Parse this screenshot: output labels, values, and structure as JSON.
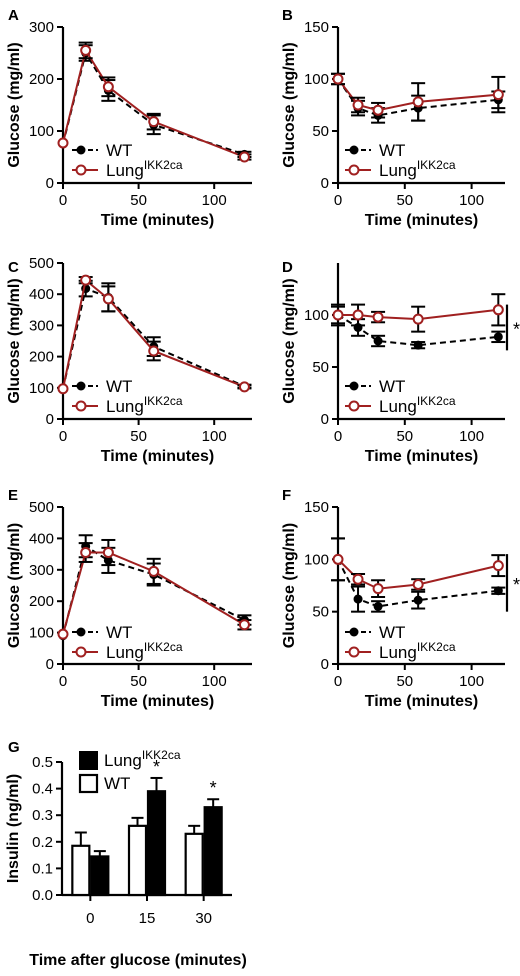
{
  "colors": {
    "wt": "#000000",
    "lung": "#a02020"
  },
  "legend": {
    "wt_label": "WT",
    "lung_label": "Lung",
    "lung_sup": "IKK2ca"
  },
  "chart_data": [
    {
      "panel": "A",
      "type": "line",
      "xlabel": "Time (minutes)",
      "ylabel": "Glucose (mg/ml)",
      "xlim": [
        0,
        125
      ],
      "ylim": [
        0,
        300
      ],
      "xticks": [
        0,
        50,
        100
      ],
      "yticks": [
        0,
        100,
        200,
        300
      ],
      "x": [
        0,
        15,
        30,
        60,
        120
      ],
      "series": [
        {
          "name": "WT",
          "values": [
            75,
            250,
            178,
            112,
            55
          ],
          "errors": [
            0,
            15,
            20,
            18,
            5
          ]
        },
        {
          "name": "LungIKK2ca",
          "values": [
            77,
            255,
            185,
            118,
            50
          ],
          "errors": [
            0,
            15,
            18,
            15,
            5
          ]
        }
      ],
      "legend_position": "lower-left",
      "significance": ""
    },
    {
      "panel": "B",
      "type": "line",
      "xlabel": "Time (minutes)",
      "ylabel": "Glucose (mg/ml)",
      "xlim": [
        0,
        125
      ],
      "ylim": [
        0,
        150
      ],
      "xticks": [
        0,
        50,
        100
      ],
      "yticks": [
        0,
        50,
        100,
        150
      ],
      "x": [
        0,
        15,
        30,
        60,
        120
      ],
      "series": [
        {
          "name": "WT",
          "values": [
            100,
            72,
            65,
            72,
            80
          ],
          "errors": [
            5,
            7,
            7,
            12,
            8
          ]
        },
        {
          "name": "LungIKK2ca",
          "values": [
            100,
            75,
            70,
            78,
            85
          ],
          "errors": [
            5,
            7,
            7,
            18,
            17
          ]
        }
      ],
      "legend_position": "lower-left",
      "significance": ""
    },
    {
      "panel": "C",
      "type": "line",
      "xlabel": "Time (minutes)",
      "ylabel": "Glucose (mg/ml)",
      "xlim": [
        0,
        125
      ],
      "ylim": [
        0,
        500
      ],
      "xticks": [
        0,
        50,
        100
      ],
      "yticks": [
        0,
        100,
        200,
        300,
        400,
        500
      ],
      "x": [
        0,
        15,
        30,
        60,
        120
      ],
      "series": [
        {
          "name": "WT",
          "values": [
            97,
            418,
            390,
            232,
            105
          ],
          "errors": [
            0,
            25,
            45,
            30,
            5
          ]
        },
        {
          "name": "LungIKK2ca",
          "values": [
            97,
            445,
            385,
            218,
            103
          ],
          "errors": [
            0,
            10,
            40,
            30,
            5
          ]
        }
      ],
      "legend_position": "lower-left",
      "significance": ""
    },
    {
      "panel": "D",
      "type": "line",
      "xlabel": "Time (minutes)",
      "ylabel": "Glucose (mg/ml)",
      "xlim": [
        0,
        125
      ],
      "ylim": [
        0,
        150
      ],
      "xticks": [
        0,
        50,
        100
      ],
      "yticks": [
        0,
        50,
        100
      ],
      "x": [
        0,
        15,
        30,
        60,
        120
      ],
      "series": [
        {
          "name": "WT",
          "values": [
            100,
            88,
            75,
            71,
            79
          ],
          "errors": [
            8,
            8,
            5,
            3,
            5
          ]
        },
        {
          "name": "LungIKK2ca",
          "values": [
            100,
            100,
            98,
            96,
            105
          ],
          "errors": [
            10,
            10,
            5,
            12,
            15
          ]
        }
      ],
      "legend_position": "lower-left",
      "significance": "*"
    },
    {
      "panel": "E",
      "type": "line",
      "xlabel": "Time (minutes)",
      "ylabel": "Glucose (mg/ml)",
      "xlim": [
        0,
        125
      ],
      "ylim": [
        0,
        500
      ],
      "xticks": [
        0,
        50,
        100
      ],
      "yticks": [
        0,
        100,
        200,
        300,
        400,
        500
      ],
      "x": [
        0,
        15,
        30,
        60,
        120
      ],
      "series": [
        {
          "name": "WT",
          "values": [
            90,
            375,
            330,
            285,
            140
          ],
          "errors": [
            0,
            35,
            40,
            35,
            15
          ]
        },
        {
          "name": "LungIKK2ca",
          "values": [
            95,
            355,
            355,
            295,
            125
          ],
          "errors": [
            0,
            30,
            40,
            40,
            15
          ]
        }
      ],
      "legend_position": "lower-left",
      "significance": ""
    },
    {
      "panel": "F",
      "type": "line",
      "xlabel": "Time (minutes)",
      "ylabel": "Glucose (mg/ml)",
      "xlim": [
        0,
        125
      ],
      "ylim": [
        0,
        150
      ],
      "xticks": [
        0,
        50,
        100
      ],
      "yticks": [
        0,
        50,
        100,
        150
      ],
      "x": [
        0,
        15,
        30,
        60,
        120
      ],
      "series": [
        {
          "name": "WT",
          "values": [
            100,
            62,
            55,
            61,
            70
          ],
          "errors": [
            20,
            12,
            5,
            8,
            3
          ]
        },
        {
          "name": "LungIKK2ca",
          "values": [
            100,
            81,
            72,
            76,
            94
          ],
          "errors": [
            20,
            5,
            8,
            5,
            10
          ]
        }
      ],
      "legend_position": "lower-left",
      "significance": "*"
    },
    {
      "panel": "G",
      "type": "bar",
      "xlabel": "Time after glucose (minutes)",
      "ylabel": "Insulin (ng/ml)",
      "ylim": [
        0,
        0.5
      ],
      "yticks": [
        0.0,
        0.1,
        0.2,
        0.3,
        0.4,
        0.5
      ],
      "yticklabels": [
        "0.0",
        "0.1",
        "0.2",
        "0.3",
        "0.4",
        "0.5"
      ],
      "categories": [
        "0",
        "15",
        "30"
      ],
      "series": [
        {
          "name": "WT",
          "values": [
            0.185,
            0.26,
            0.23
          ],
          "errors": [
            0.05,
            0.03,
            0.03
          ]
        },
        {
          "name": "LungIKK2ca",
          "values": [
            0.145,
            0.39,
            0.33
          ],
          "errors": [
            0.02,
            0.05,
            0.03
          ]
        }
      ],
      "significance": [
        "",
        "*",
        "*"
      ],
      "legend_position": "top-left"
    }
  ]
}
